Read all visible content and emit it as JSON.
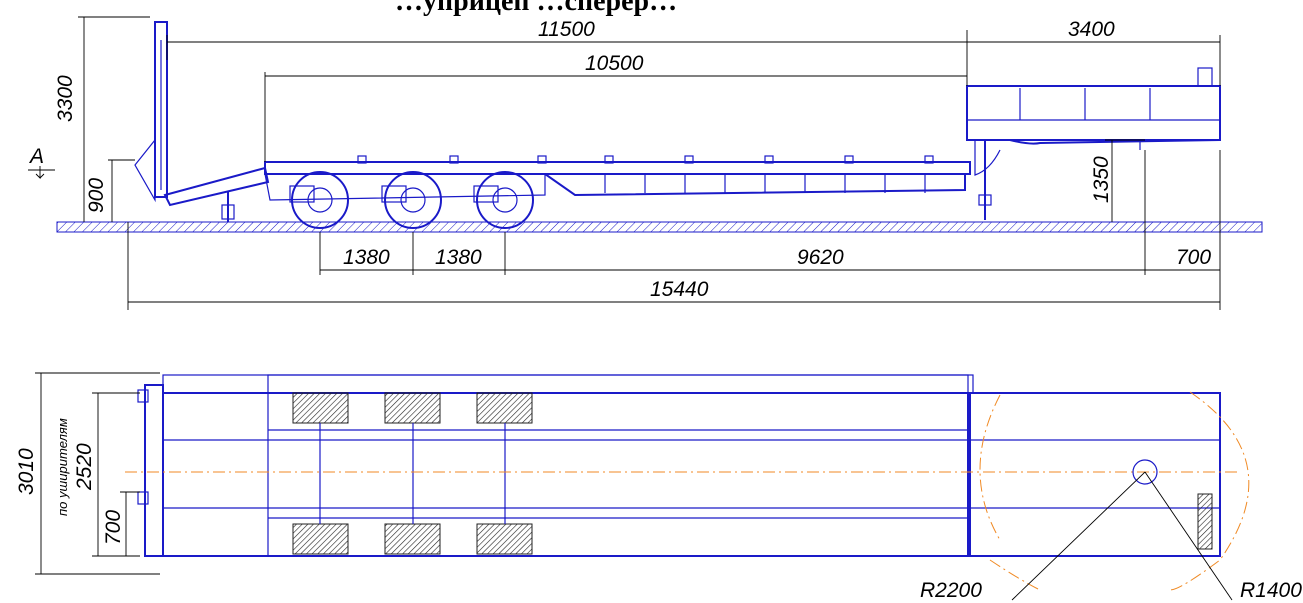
{
  "title": "…уприцеп …сперер…",
  "view_label": "A",
  "side_view": {
    "dims": {
      "total_height": "3300",
      "deck_height": "900",
      "platform_length": "11500",
      "gooseneck_length": "3400",
      "low_deck_length": "10500",
      "fifth_wheel_height": "1350",
      "axle_spacing_1": "1380",
      "axle_spacing_2": "1380",
      "axle_to_kingpin": "9620",
      "kingpin_offset": "700",
      "overall_length": "15440"
    }
  },
  "top_view": {
    "dims": {
      "overall_width": "3010",
      "width_note": "по уширителям",
      "deck_width": "2520",
      "side_width": "700",
      "radius_outer": "R2200",
      "radius_inner": "R1400"
    }
  },
  "colors": {
    "structure": "#1a1ac8",
    "dimension": "#000000",
    "centerline": "#f08a24",
    "circle_hint": "#f08a24"
  }
}
